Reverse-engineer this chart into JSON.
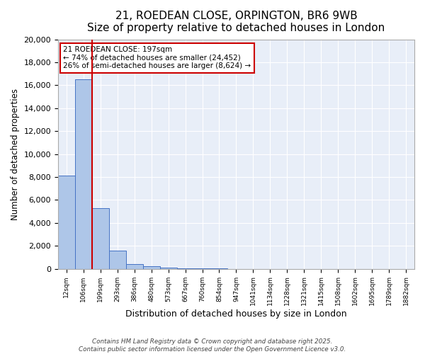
{
  "title": "21, ROEDEAN CLOSE, ORPINGTON, BR6 9WB",
  "subtitle": "Size of property relative to detached houses in London",
  "xlabel": "Distribution of detached houses by size in London",
  "ylabel": "Number of detached properties",
  "bins": [
    "12sqm",
    "106sqm",
    "199sqm",
    "293sqm",
    "386sqm",
    "480sqm",
    "573sqm",
    "667sqm",
    "760sqm",
    "854sqm",
    "947sqm",
    "1041sqm",
    "1134sqm",
    "1228sqm",
    "1321sqm",
    "1415sqm",
    "1508sqm",
    "1602sqm",
    "1695sqm",
    "1789sqm",
    "1882sqm"
  ],
  "values": [
    8100,
    16500,
    5300,
    1600,
    400,
    200,
    100,
    50,
    20,
    10,
    5,
    3,
    2,
    2,
    1,
    1,
    1,
    0,
    0,
    0,
    0
  ],
  "bar_color": "#aec6e8",
  "bar_edge_color": "#4472c4",
  "property_line_idx": 2,
  "property_line_color": "#cc0000",
  "annotation_line1": "21 ROEDEAN CLOSE: 197sqm",
  "annotation_line2": "← 74% of detached houses are smaller (24,452)",
  "annotation_line3": "26% of semi-detached houses are larger (8,624) →",
  "annotation_box_color": "#cc0000",
  "ylim": [
    0,
    20000
  ],
  "yticks": [
    0,
    2000,
    4000,
    6000,
    8000,
    10000,
    12000,
    14000,
    16000,
    18000,
    20000
  ],
  "background_color": "#e8eef8",
  "footer": "Contains HM Land Registry data © Crown copyright and database right 2025.\nContains public sector information licensed under the Open Government Licence v3.0.",
  "title_fontsize": 11,
  "xlabel_fontsize": 9,
  "ylabel_fontsize": 8.5
}
